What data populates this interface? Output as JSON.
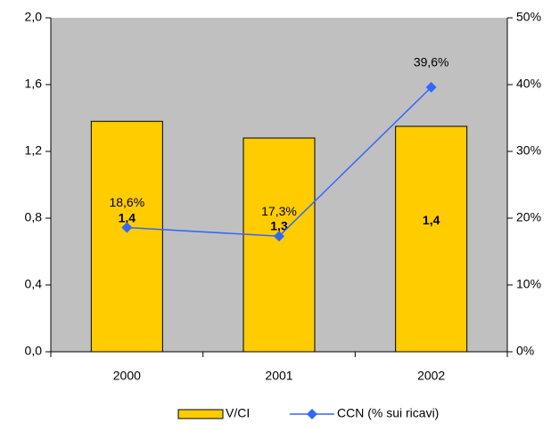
{
  "chart_data": {
    "type": "bar",
    "categories": [
      "2000",
      "2001",
      "2002"
    ],
    "series": [
      {
        "name": "V/CI",
        "type": "bar",
        "color": "#ffcc00",
        "values": [
          1.38,
          1.28,
          1.35
        ],
        "value_labels": [
          "1,4",
          "1,3",
          "1,4"
        ]
      },
      {
        "name": "CCN (% sui ricavi)",
        "type": "line",
        "axis": "y2",
        "color": "#3366ff",
        "values": [
          18.6,
          17.3,
          39.6
        ],
        "value_labels": [
          "18,6%",
          "17,3%",
          "39,6%"
        ]
      }
    ],
    "ylim": [
      0,
      2.0
    ],
    "yticks": [
      {
        "value": 0,
        "label": "0,0"
      },
      {
        "value": 0.4,
        "label": "0,4"
      },
      {
        "value": 0.8,
        "label": "0,8"
      },
      {
        "value": 1.2,
        "label": "1,2"
      },
      {
        "value": 1.6,
        "label": "1,6"
      },
      {
        "value": 2.0,
        "label": "2,0"
      }
    ],
    "y2lim": [
      0,
      50
    ],
    "y2ticks": [
      {
        "value": 0,
        "label": "0%"
      },
      {
        "value": 10,
        "label": "10%"
      },
      {
        "value": 20,
        "label": "20%"
      },
      {
        "value": 30,
        "label": "30%"
      },
      {
        "value": 40,
        "label": "40%"
      },
      {
        "value": 50,
        "label": "50%"
      }
    ],
    "grid": false,
    "plot_background": "#c0c0c0",
    "legend": "bottom"
  }
}
